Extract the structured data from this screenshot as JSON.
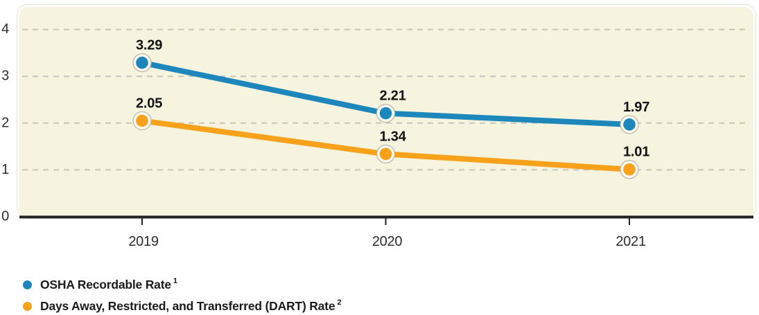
{
  "chart_data": {
    "type": "line",
    "categories": [
      "2019",
      "2020",
      "2021"
    ],
    "series": [
      {
        "name": "OSHA Recordable Rate",
        "footnote_marker": "1",
        "color": "#1d87bc",
        "values": [
          3.29,
          2.21,
          1.97
        ]
      },
      {
        "name": "Days Away, Restricted, and Transferred (DART) Rate",
        "footnote_marker": "2",
        "color": "#f8a21b",
        "values": [
          2.05,
          1.34,
          1.01
        ]
      }
    ],
    "title": "",
    "xlabel": "",
    "ylabel": "",
    "ylim": [
      0,
      4
    ],
    "yticks": [
      0,
      1,
      2,
      3,
      4
    ],
    "grid": "horizontal-dashed",
    "point_labels": true,
    "legend_position": "bottom-left"
  },
  "colors": {
    "page_background": "#ffffff",
    "panel_background": "#f6f4df",
    "panel_border": "#e4e3da",
    "gridline": "#c6c5bb",
    "axis": "#232323",
    "tick_text": "#2d2d2d",
    "value_text": "#121212",
    "legend_text": "#1b1b1b",
    "marker_ring": "#fcfaf0",
    "marker_ring_stroke": "#b5b4a6"
  }
}
